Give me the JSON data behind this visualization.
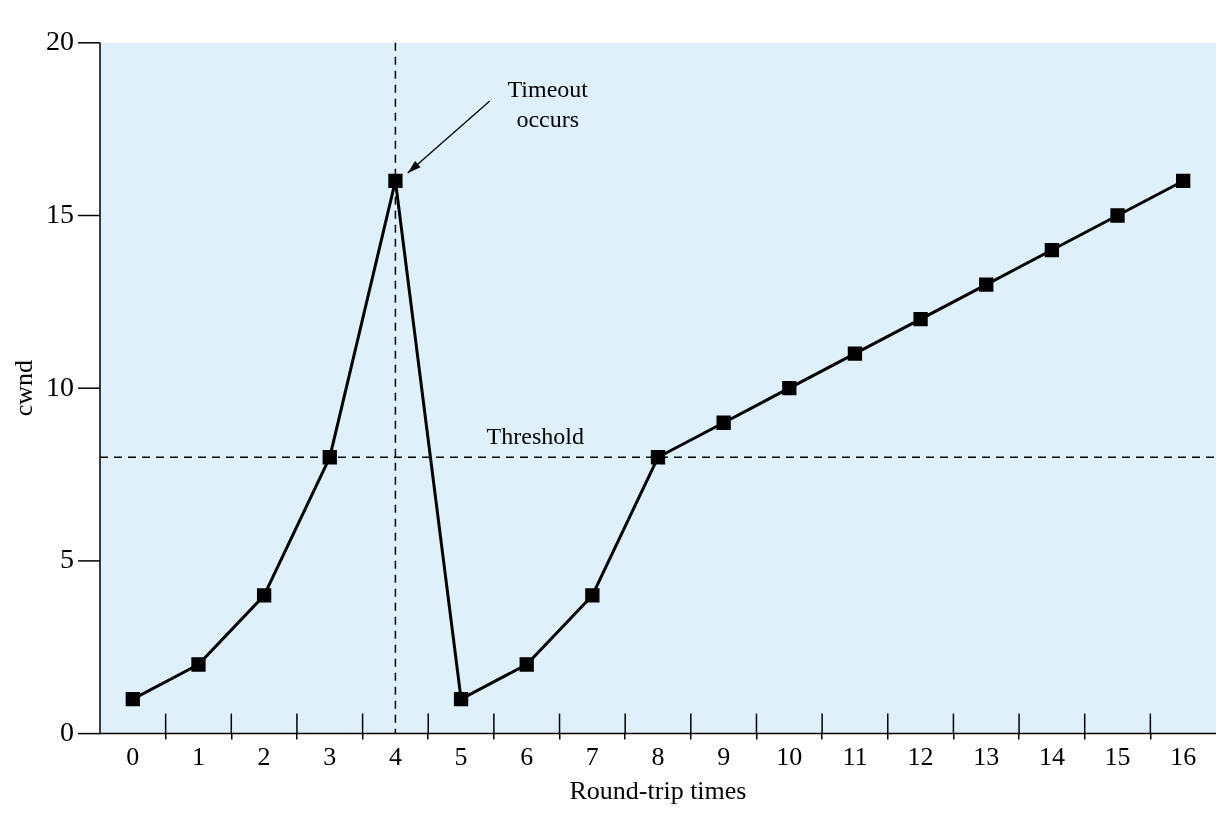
{
  "chart_data": {
    "type": "line",
    "xlabel": "Round-trip times",
    "ylabel": "cwnd",
    "x": [
      0,
      1,
      2,
      3,
      4,
      5,
      6,
      7,
      8,
      9,
      10,
      11,
      12,
      13,
      14,
      15,
      16
    ],
    "series": [
      {
        "color": "#000000",
        "values": [
          1,
          2,
          4,
          8,
          16,
          1,
          2,
          4,
          8,
          9,
          10,
          11,
          12,
          13,
          14,
          15,
          16
        ]
      }
    ],
    "xlim": [
      -0.5,
      16.5
    ],
    "xticks": [
      0,
      {
        "value": 0.5,
        "label": null
      },
      1,
      {
        "value": 1.5,
        "label": null
      },
      2,
      {
        "value": 2.5,
        "label": null
      },
      3,
      {
        "value": 3.5,
        "label": null
      },
      4,
      {
        "value": 4.5,
        "label": null
      },
      5,
      {
        "value": 5.5,
        "label": null
      },
      6,
      {
        "value": 6.5,
        "label": null
      },
      7,
      {
        "value": 7.5,
        "label": null
      },
      8,
      {
        "value": 8.5,
        "label": null
      },
      9,
      {
        "value": 9.5,
        "label": null
      },
      10,
      {
        "value": 10.5,
        "label": null
      },
      11,
      {
        "value": 11.5,
        "label": null
      },
      12,
      {
        "value": 12.5,
        "label": null
      },
      13,
      {
        "value": 13.5,
        "label": null
      },
      14,
      {
        "value": 14.5,
        "label": null
      },
      15,
      {
        "value": 15.5,
        "label": null
      },
      16
    ],
    "ylim": [
      0,
      20
    ],
    "yticks": [
      0,
      5,
      10,
      15,
      20
    ],
    "ref_lines": [
      {
        "axis": "y",
        "value": 8,
        "label": "Threshold",
        "color": "#000000",
        "line_style": "dashed"
      },
      {
        "axis": "x",
        "value": 4,
        "label": null,
        "color": "#000000",
        "line_style": "dashed"
      }
    ],
    "annotations": [
      "Timeout occurs"
    ],
    "marker": "square",
    "line_style": "solid",
    "grid": false,
    "legend": false
  }
}
